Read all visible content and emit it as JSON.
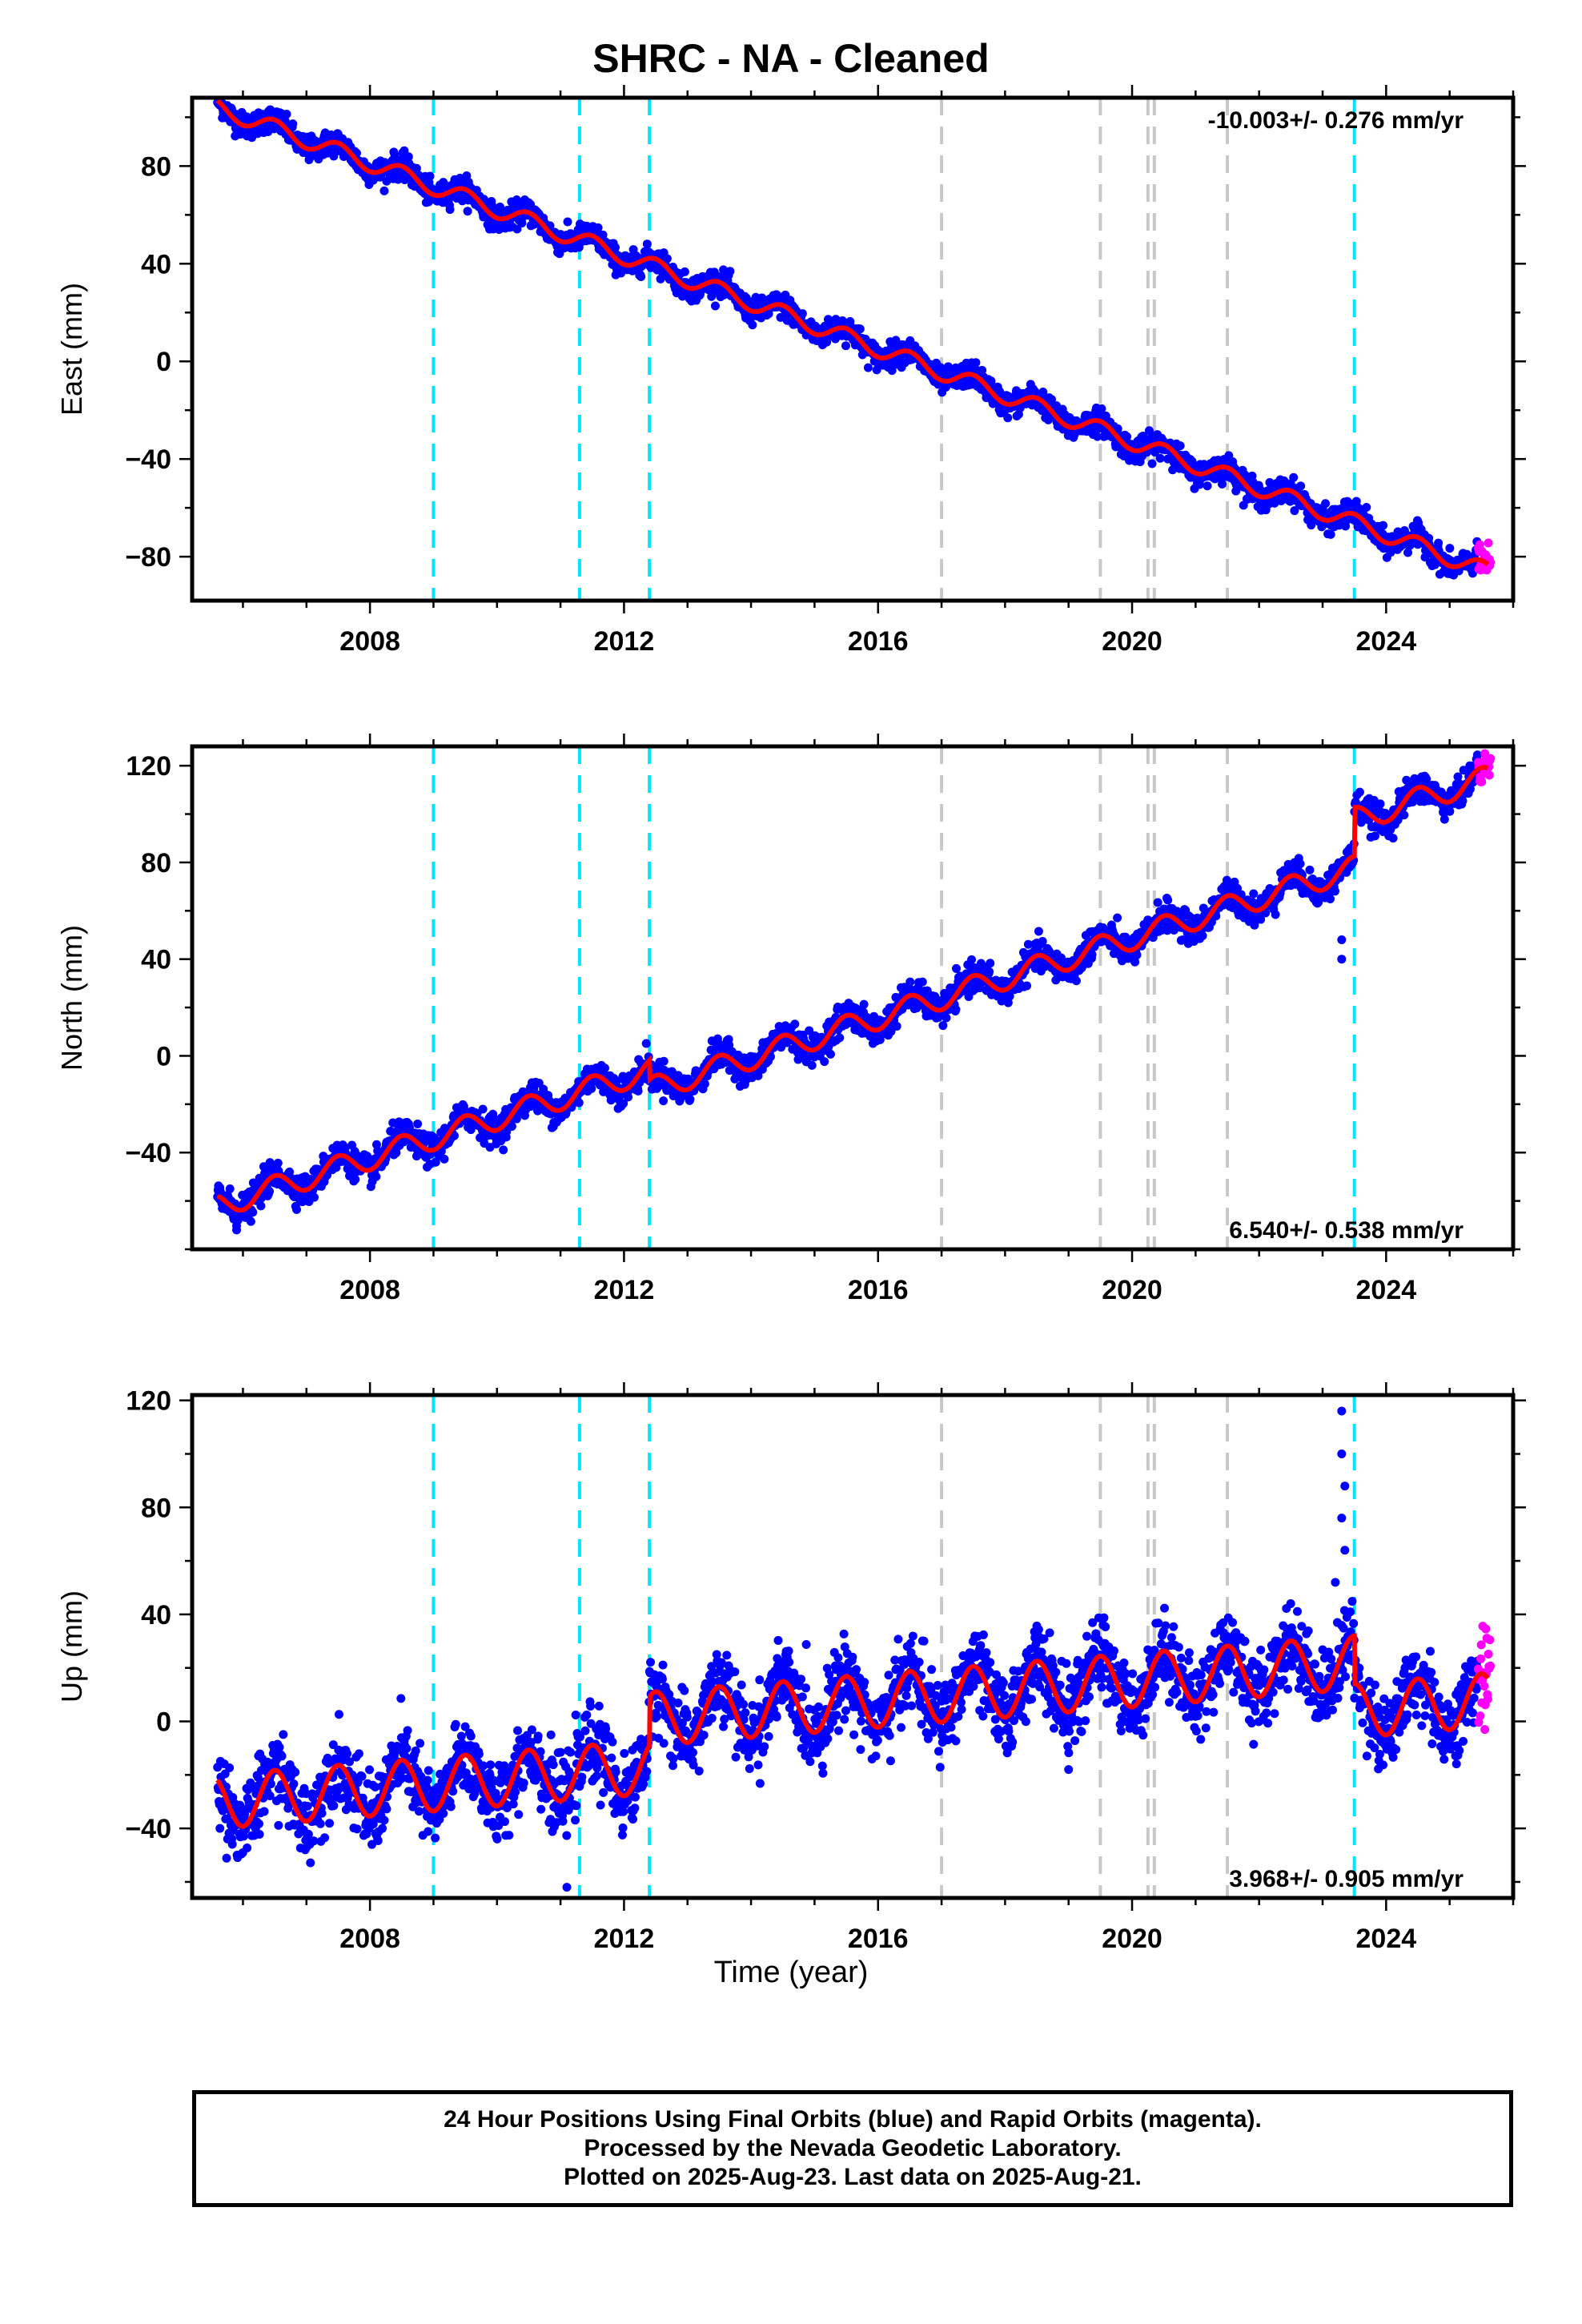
{
  "title": "SHRC  - NA - Cleaned",
  "xlabel": "Time (year)",
  "footer": [
    "24 Hour Positions Using Final Orbits (blue) and Rapid Orbits (magenta).",
    "Processed by the Nevada Geodetic Laboratory.",
    "Plotted on 2025-Aug-23. Last data on 2025-Aug-21."
  ],
  "colors": {
    "final_orbits": "#0000ff",
    "rapid_orbits": "#ff00ff",
    "model_fit": "#ff0000",
    "event_equipment": "#00e5ff",
    "event_earthquake": "#c8c8c8"
  },
  "chart_data": [
    {
      "type": "scatter",
      "name": "east",
      "ylabel": "East (mm)",
      "rate_label": "-10.003+/- 0.276 mm/yr",
      "rate_label_position": "top-right",
      "xlim": [
        2005.2,
        2026.0
      ],
      "ylim": [
        -98,
        108
      ],
      "xticks": [
        2008,
        2012,
        2016,
        2020,
        2024
      ],
      "yticks": [
        -80,
        -40,
        0,
        40,
        80
      ],
      "xticklabels": [
        "2008",
        "2012",
        "2016",
        "2020",
        "2024"
      ],
      "yticklabels": [
        "−80",
        "−40",
        "0",
        "40",
        "80"
      ],
      "start": 2005.6,
      "end": 2025.6,
      "start_value": 104,
      "end_value": -86,
      "offsets": [],
      "seasonal_amplitude": 3.5,
      "noise": 2.5,
      "outliers": []
    },
    {
      "type": "scatter",
      "name": "north",
      "ylabel": "North (mm)",
      "rate_label": "6.540+/- 0.538 mm/yr",
      "rate_label_position": "bottom-right",
      "xlim": [
        2005.2,
        2026.0
      ],
      "ylim": [
        -80,
        128
      ],
      "xticks": [
        2008,
        2012,
        2016,
        2020,
        2024
      ],
      "yticks": [
        -40,
        0,
        40,
        80,
        120
      ],
      "xticklabels": [
        "2008",
        "2012",
        "2016",
        "2020",
        "2024"
      ],
      "yticklabels": [
        "−40",
        "0",
        "40",
        "80",
        "120"
      ],
      "start": 2005.6,
      "end": 2025.6,
      "start_value": -62,
      "end_value": 115,
      "offsets": [
        {
          "t": 2012.4,
          "d": -8
        },
        {
          "t": 2023.5,
          "d": 20
        }
      ],
      "seasonal_amplitude": 5,
      "noise": 3,
      "outliers": [
        {
          "x": 2023.3,
          "y": 40
        },
        {
          "x": 2023.3,
          "y": 48
        },
        {
          "x": 2005.9,
          "y": -72
        }
      ]
    },
    {
      "type": "scatter",
      "name": "up",
      "ylabel": "Up (mm)",
      "rate_label": "3.968+/- 0.905 mm/yr",
      "rate_label_position": "bottom-right",
      "xlim": [
        2005.2,
        2026.0
      ],
      "ylim": [
        -66,
        122
      ],
      "xticks": [
        2008,
        2012,
        2016,
        2020,
        2024
      ],
      "yticks": [
        -40,
        0,
        40,
        80,
        120
      ],
      "xticklabels": [
        "2008",
        "2012",
        "2016",
        "2020",
        "2024"
      ],
      "yticklabels": [
        "−40",
        "0",
        "40",
        "80",
        "120"
      ],
      "start": 2005.6,
      "end": 2025.6,
      "start_value": -30,
      "end_value": 8,
      "offsets": [
        {
          "t": 2012.4,
          "d": 18
        },
        {
          "t": 2023.5,
          "d": -18
        }
      ],
      "seasonal_amplitude": 10,
      "noise": 7,
      "outliers": [
        {
          "x": 2023.3,
          "y": 116
        },
        {
          "x": 2023.3,
          "y": 100
        },
        {
          "x": 2023.35,
          "y": 88
        },
        {
          "x": 2023.3,
          "y": 76
        },
        {
          "x": 2023.35,
          "y": 64
        },
        {
          "x": 2023.2,
          "y": 52
        },
        {
          "x": 2011.1,
          "y": -62
        },
        {
          "x": 2019.0,
          "y": -18
        }
      ]
    }
  ],
  "events": [
    {
      "t": 2009.0,
      "kind": "equipment"
    },
    {
      "t": 2011.3,
      "kind": "equipment"
    },
    {
      "t": 2012.4,
      "kind": "equipment"
    },
    {
      "t": 2017.0,
      "kind": "earthquake"
    },
    {
      "t": 2019.5,
      "kind": "earthquake"
    },
    {
      "t": 2020.25,
      "kind": "earthquake"
    },
    {
      "t": 2020.35,
      "kind": "earthquake"
    },
    {
      "t": 2021.5,
      "kind": "earthquake"
    },
    {
      "t": 2023.5,
      "kind": "equipment"
    }
  ],
  "rapid_segment": {
    "start": 2025.45,
    "end": 2025.65
  }
}
